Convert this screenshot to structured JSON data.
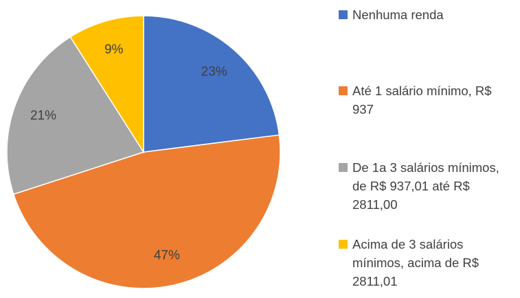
{
  "chart_data": {
    "type": "pie",
    "categories": [
      "Nenhuma renda",
      "Até 1 salário mínimo, R$ 937",
      "De 1a 3 salários mínimos, de R$ 937,01 até R$ 2811,00",
      "Acima de 3 salários mínimos, acima de R$ 2811,01"
    ],
    "values": [
      23,
      47,
      21,
      9
    ],
    "value_labels": [
      "23%",
      "47%",
      "21%",
      "9%"
    ],
    "colors": [
      "#4472c4",
      "#ed7d31",
      "#a5a5a5",
      "#ffc000"
    ],
    "legend": "right"
  }
}
